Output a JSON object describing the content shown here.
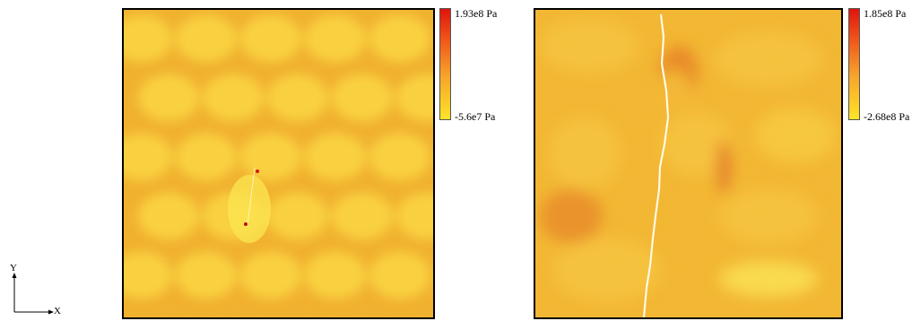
{
  "axes": {
    "x_label": "X",
    "y_label": "Y"
  },
  "panels": [
    {
      "colorbar": {
        "max_label": "1.93e8 Pa",
        "min_label": "-5.6e7 Pa"
      }
    },
    {
      "colorbar": {
        "max_label": "1.85e8 Pa",
        "min_label": "-2.68e8 Pa"
      }
    }
  ],
  "colors": {
    "high": "#e0140e",
    "mid": "#f7a32a",
    "low": "#fde428",
    "base": "#f1b630"
  }
}
